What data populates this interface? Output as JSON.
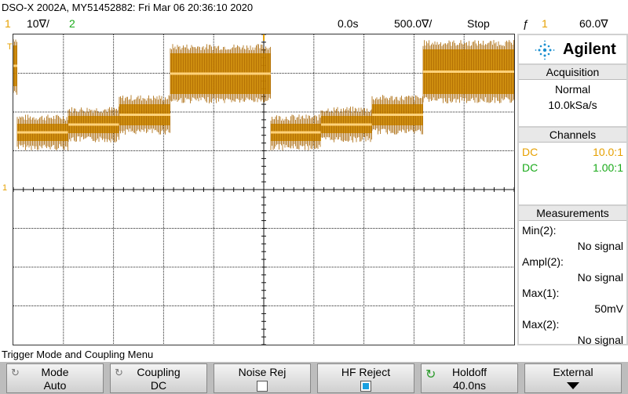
{
  "header": {
    "title": "DSO-X 2002A, MY51452882: Fri Mar 06 20:36:10 2020"
  },
  "status": {
    "ch1_number": "1",
    "ch1_scale": "10∇/",
    "ch2_number": "2",
    "time_delay": "0.0s",
    "time_scale": "500.0∇/",
    "run_state": "Stop",
    "trigger_slope": "ƒ",
    "trigger_source": "1",
    "trigger_level": "60.0∇"
  },
  "markers": {
    "trigger_position": "T",
    "ch1_ground": "1"
  },
  "panel": {
    "brand": "Agilent",
    "acquisition": {
      "heading": "Acquisition",
      "mode": "Normal",
      "rate": "10.0kSa/s"
    },
    "channels": {
      "heading": "Channels",
      "rows": [
        {
          "coupling": "DC",
          "probe": "10.0:1"
        },
        {
          "coupling": "DC",
          "probe": "1.00:1"
        }
      ]
    },
    "measurements": {
      "heading": "Measurements",
      "items": [
        {
          "label": "Min(2):",
          "value": "No signal"
        },
        {
          "label": "Ampl(2):",
          "value": "No signal"
        },
        {
          "label": "Max(1):",
          "value": "50mV"
        },
        {
          "label": "Max(2):",
          "value": "No signal"
        }
      ]
    }
  },
  "menu": {
    "title": "Trigger Mode and Coupling Menu",
    "softkeys": [
      {
        "label": "Mode",
        "value": "Auto"
      },
      {
        "label": "Coupling",
        "value": "DC"
      },
      {
        "label": "Noise Rej",
        "value": ""
      },
      {
        "label": "HF Reject",
        "value": ""
      },
      {
        "label": "Holdoff",
        "value": "40.0ns"
      },
      {
        "label": "External",
        "value": ""
      }
    ]
  },
  "colors": {
    "ch1": "#e6a000",
    "ch1_dark": "#a86400",
    "ch2": "#1aaa1a",
    "grid": "#222222"
  }
}
